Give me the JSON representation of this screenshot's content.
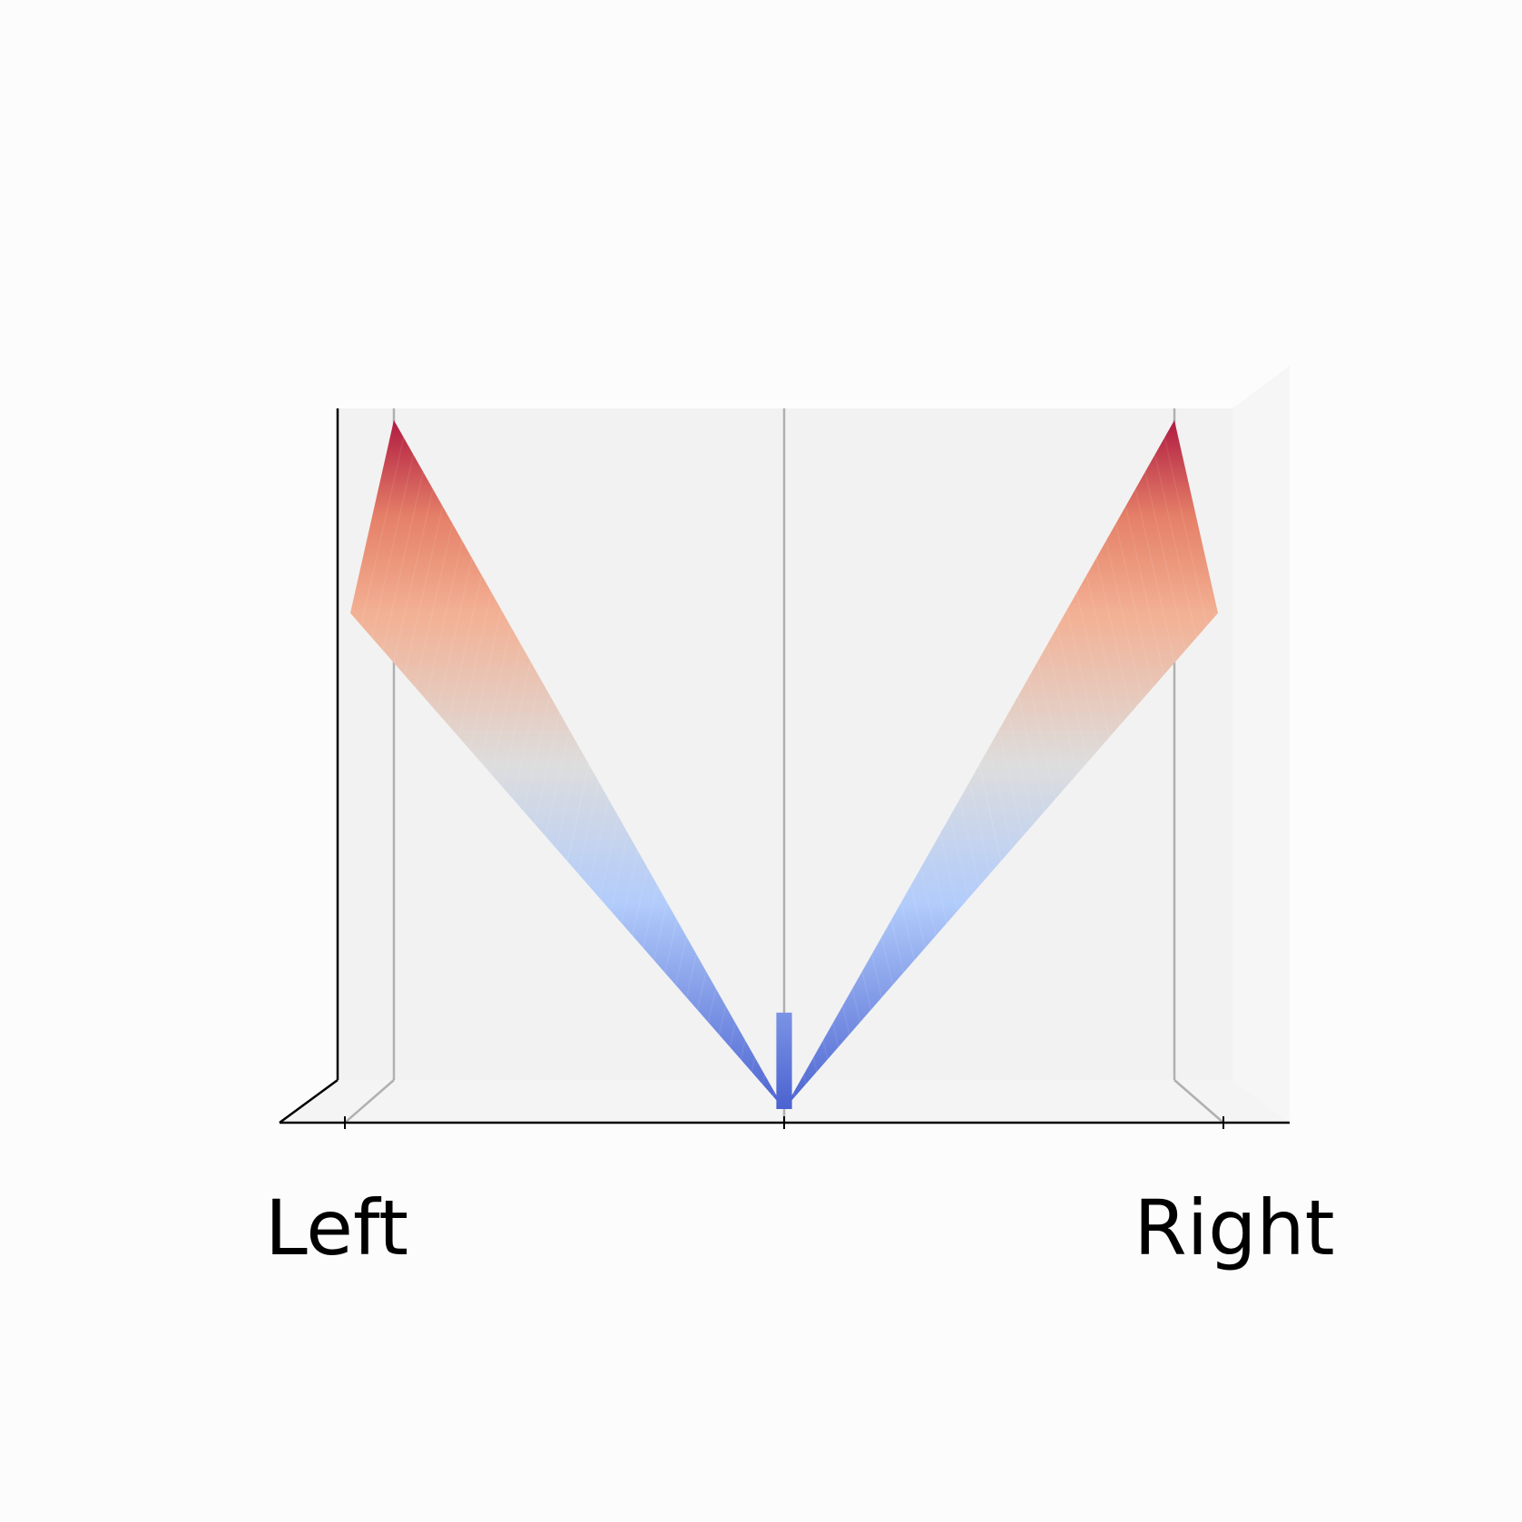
{
  "chart_data": {
    "type": "surface",
    "title": "",
    "x": {
      "label": "",
      "ticks": [
        -1,
        0,
        1
      ],
      "tick_labels": [
        "Left",
        "",
        "Right"
      ]
    },
    "y": {
      "label": ""
    },
    "z": {
      "label": ""
    },
    "surface": {
      "x": [
        -1,
        -0.5,
        0,
        0.5,
        1
      ],
      "z": [
        1,
        0.5,
        0,
        0.5,
        1
      ],
      "description_function": "abs(x)",
      "colormap": "coolwarm"
    },
    "grid": true,
    "legend": "none"
  },
  "colors": {
    "background": "#fcfcfc",
    "pane_back": "#f2f2f2",
    "pane_floor": "#f4f4f4",
    "pane_side": "#f6f6f6",
    "grid": "#b0b0b0",
    "axis": "#000000",
    "coolwarm_low": "#3b4cc0",
    "coolwarm_mid": "#dddddd",
    "coolwarm_high": "#b40426"
  }
}
